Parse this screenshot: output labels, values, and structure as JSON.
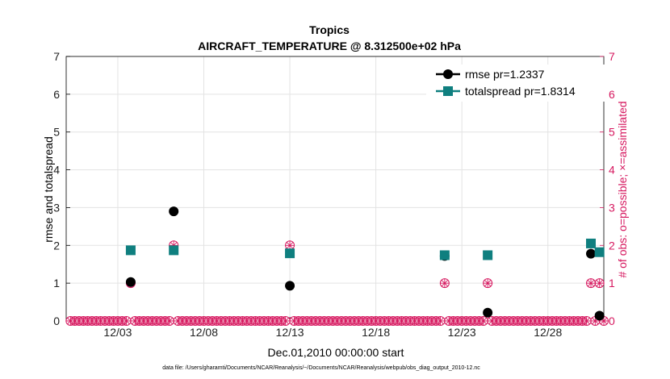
{
  "chart_data": {
    "type": "scatter",
    "title": "Tropics",
    "subtitle": "AIRCRAFT_TEMPERATURE @ 8.312500e+02 hPa",
    "xlabel": "Dec.01,2010 00:00:00 start",
    "ylabel": "rmse and totalspread",
    "ylabel_right": "# of obs: o=possible; ×=assimilated",
    "xlim": [
      0,
      31.25
    ],
    "ylim": [
      0,
      7
    ],
    "ylim_right": [
      0,
      7
    ],
    "x_ticks": [
      {
        "x": 3,
        "label": "12/03"
      },
      {
        "x": 8,
        "label": "12/08"
      },
      {
        "x": 13,
        "label": "12/13"
      },
      {
        "x": 18,
        "label": "12/18"
      },
      {
        "x": 23,
        "label": "12/23"
      },
      {
        "x": 28,
        "label": "12/28"
      }
    ],
    "y_ticks": [
      "0",
      "1",
      "2",
      "3",
      "4",
      "5",
      "6",
      "7"
    ],
    "y_ticks_right": [
      "0",
      "1",
      "2",
      "3",
      "4",
      "5",
      "6",
      "7"
    ],
    "grid": true,
    "legend_position": "top-right",
    "series": [
      {
        "name": "rmse pr=1.2337",
        "color": "#000000",
        "marker": "circle",
        "points": [
          [
            3.75,
            1.03
          ],
          [
            6.25,
            2.9
          ],
          [
            13.0,
            0.93
          ],
          [
            22.0,
            1.72
          ],
          [
            24.5,
            0.22
          ],
          [
            30.5,
            1.78
          ],
          [
            31.0,
            0.14
          ]
        ]
      },
      {
        "name": "totalspread pr=1.8314",
        "color": "#0f7f7f",
        "marker": "square",
        "points": [
          [
            3.75,
            1.87
          ],
          [
            6.25,
            1.87
          ],
          [
            13.0,
            1.79
          ],
          [
            22.0,
            1.74
          ],
          [
            24.5,
            1.74
          ],
          [
            30.5,
            2.05
          ],
          [
            31.0,
            1.82
          ]
        ]
      }
    ],
    "obs_color": "#d6185f",
    "obs_possible": [
      [
        3.75,
        1
      ],
      [
        6.25,
        2
      ],
      [
        13.0,
        2
      ],
      [
        22.0,
        1
      ],
      [
        24.5,
        1
      ],
      [
        30.5,
        1
      ],
      [
        31.0,
        1
      ]
    ],
    "obs_assimilated": [
      [
        3.75,
        1
      ],
      [
        6.25,
        2
      ],
      [
        13.0,
        2
      ],
      [
        22.0,
        1
      ],
      [
        24.5,
        1
      ],
      [
        30.5,
        1
      ],
      [
        31.0,
        1
      ]
    ],
    "obs_baseline_step": 0.25
  },
  "footnote": "data file: /Users/gharamti/Documents/NCAR/Reanalysis/~/Documents/NCAR/Reanalysis/webpub/obs_diag_output_2010-12.nc"
}
